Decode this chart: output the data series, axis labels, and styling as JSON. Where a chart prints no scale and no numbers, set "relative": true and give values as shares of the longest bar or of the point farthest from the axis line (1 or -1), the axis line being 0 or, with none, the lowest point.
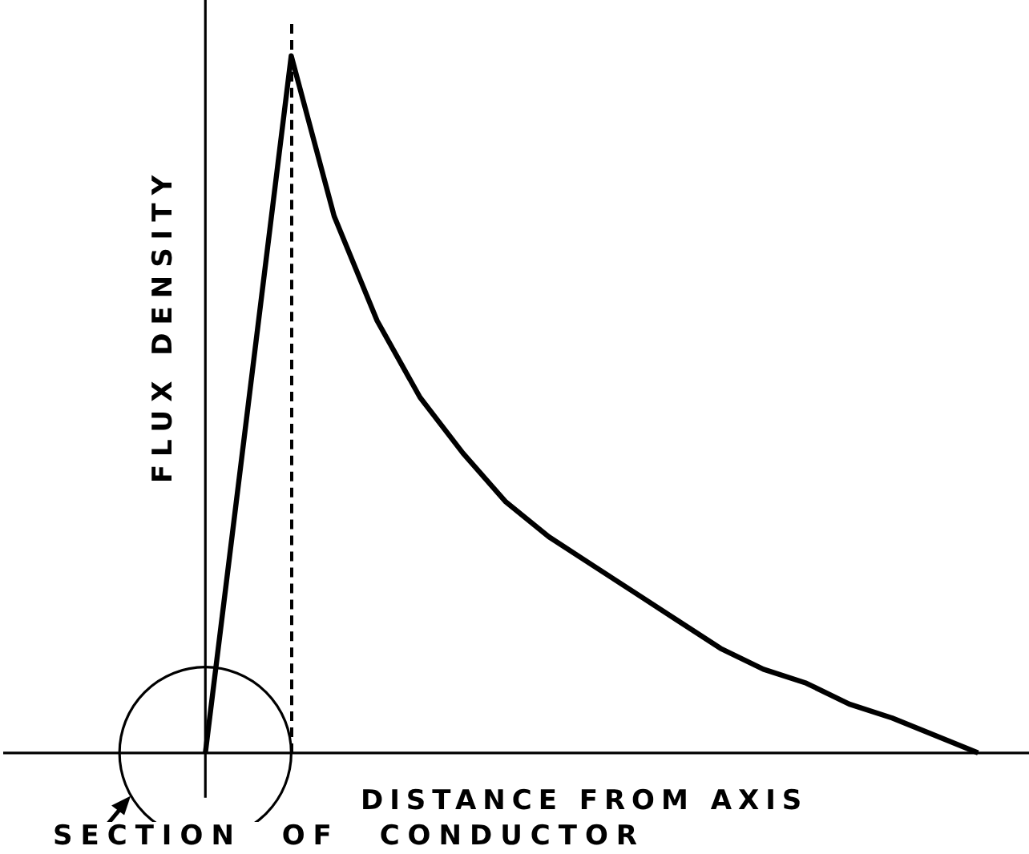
{
  "chart_data": {
    "type": "line",
    "relative": true,
    "ylabel": "FLUX DENSITY",
    "xlabel": "DISTANCE FROM AXIS",
    "annotations": [
      "SECTION OF CONDUCTOR"
    ],
    "categories": [
      null,
      null,
      null,
      null,
      null,
      null,
      null,
      null,
      null,
      null,
      null,
      null,
      null,
      null,
      null,
      null,
      null,
      null,
      null,
      null,
      null,
      null,
      null,
      null
    ],
    "series": [
      {
        "color": "#000000",
        "values": [
          null,
          null,
          null,
          null,
          0,
          0.5,
          1,
          0.77,
          0.62,
          0.51,
          0.43,
          0.36,
          0.31,
          0.27,
          0.23,
          0.19,
          0.15,
          0.12,
          0.1,
          0.07,
          0.05,
          0.025,
          0,
          null
        ]
      }
    ],
    "tick_labels": false,
    "legend": false,
    "marker": "none",
    "line_style": "solid"
  }
}
